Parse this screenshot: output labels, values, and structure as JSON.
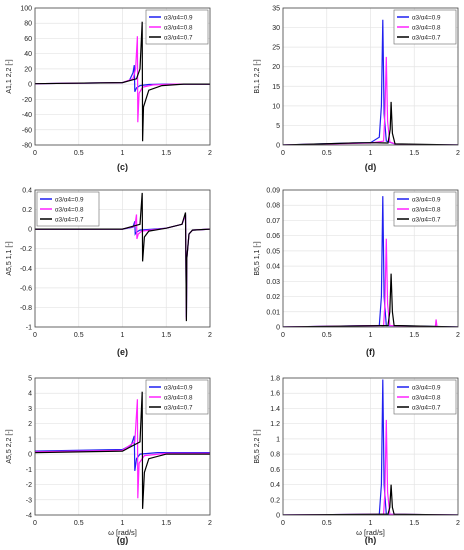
{
  "colors": {
    "blue": "#1f1ff0",
    "magenta": "#ff22ff",
    "black": "#000000",
    "grid": "#e4e4e4",
    "axis": "#444444"
  },
  "legend": [
    "α3/α4=0.9",
    "α3/α4=0.8",
    "α3/α4=0.7"
  ],
  "chart_data": [
    {
      "panel": "c",
      "type": "line",
      "xlabel": "",
      "ylabel": "A1,1 2,2 [-]",
      "xlim": [
        0,
        2
      ],
      "ylim": [
        -80,
        100
      ],
      "xticks": [
        "0",
        "0.5",
        "1",
        "1.5",
        "2"
      ],
      "yticks": [
        "-80",
        "-60",
        "-40",
        "-20",
        "0",
        "20",
        "40",
        "60",
        "80",
        "100"
      ],
      "caption": "(c)",
      "grid": true,
      "legend_position": "top-right",
      "series": [
        {
          "name": "α3/α4=0.9",
          "color": "blue",
          "x": [
            0,
            1.0,
            1.08,
            1.12,
            1.135,
            1.14,
            1.16,
            1.2,
            1.3,
            1.5,
            2.0
          ],
          "y": [
            0.5,
            2,
            5,
            15,
            25,
            -10,
            -5,
            -2,
            -0.5,
            0,
            0
          ]
        },
        {
          "name": "α3/α4=0.8",
          "color": "magenta",
          "x": [
            0,
            1.0,
            1.12,
            1.15,
            1.17,
            1.175,
            1.19,
            1.23,
            1.35,
            1.6,
            2.0
          ],
          "y": [
            0.5,
            2,
            7,
            20,
            63,
            -50,
            -12,
            -4,
            -1,
            0,
            0
          ]
        },
        {
          "name": "α3/α4=0.7",
          "color": "black",
          "x": [
            0,
            1.0,
            1.16,
            1.2,
            1.225,
            1.23,
            1.24,
            1.3,
            1.45,
            1.7,
            2.0
          ],
          "y": [
            0.5,
            2,
            7,
            20,
            82,
            -75,
            -30,
            -8,
            -2,
            0,
            0
          ]
        }
      ]
    },
    {
      "panel": "d",
      "type": "line",
      "xlabel": "",
      "ylabel": "B1,1 2,2 [-]",
      "xlim": [
        0,
        2
      ],
      "ylim": [
        0,
        35
      ],
      "xticks": [
        "0",
        "0.5",
        "1",
        "1.5",
        "2"
      ],
      "yticks": [
        "0",
        "5",
        "10",
        "15",
        "20",
        "25",
        "30",
        "35"
      ],
      "caption": "(d)",
      "grid": true,
      "legend_position": "top-right",
      "series": [
        {
          "name": "α3/α4=0.9",
          "color": "blue",
          "x": [
            0,
            0.8,
            1.0,
            1.1,
            1.125,
            1.14,
            1.155,
            1.18,
            1.3,
            2.0
          ],
          "y": [
            0,
            0.5,
            0.6,
            2,
            10,
            32,
            8,
            1,
            0.1,
            0
          ]
        },
        {
          "name": "α3/α4=0.8",
          "color": "magenta",
          "x": [
            0,
            0.8,
            1.0,
            1.15,
            1.165,
            1.18,
            1.195,
            1.22,
            1.3,
            2.0
          ],
          "y": [
            0,
            0.4,
            0.5,
            1,
            8,
            22.5,
            6,
            0.8,
            0.1,
            0
          ]
        },
        {
          "name": "α3/α4=0.7",
          "color": "black",
          "x": [
            0,
            0.8,
            1.0,
            1.2,
            1.225,
            1.235,
            1.25,
            1.28,
            2.0
          ],
          "y": [
            0,
            0.5,
            0.6,
            0.5,
            4,
            11,
            3,
            0.3,
            0
          ]
        }
      ]
    },
    {
      "panel": "e",
      "type": "line",
      "xlabel": "",
      "ylabel": "A5,5 1,1 [-]",
      "xlim": [
        0,
        2
      ],
      "ylim": [
        -1,
        0.4
      ],
      "xticks": [
        "0",
        "0.5",
        "1",
        "1.5",
        "2"
      ],
      "yticks": [
        "-1",
        "-0.8",
        "-0.6",
        "-0.4",
        "-0.2",
        "0",
        "0.2",
        "0.4"
      ],
      "caption": "(e)",
      "grid": true,
      "legend_position": "top-left",
      "series": [
        {
          "name": "α3/α4=0.9",
          "color": "blue",
          "x": [
            0,
            1.0,
            1.12,
            1.14,
            1.145,
            1.16,
            1.2,
            1.5,
            1.68,
            1.72,
            1.73,
            1.735,
            1.76,
            1.8,
            2.0
          ],
          "y": [
            0,
            0,
            0.02,
            0.08,
            -0.05,
            -0.03,
            -0.01,
            0.01,
            0.05,
            0.15,
            -0.9,
            -0.3,
            -0.05,
            -0.01,
            0
          ]
        },
        {
          "name": "α3/α4=0.8",
          "color": "magenta",
          "x": [
            0,
            1.0,
            1.14,
            1.16,
            1.165,
            1.18,
            1.22,
            1.5,
            1.68,
            1.72,
            1.73,
            1.735,
            1.76,
            1.8,
            2.0
          ],
          "y": [
            0,
            0,
            0.03,
            0.15,
            -0.1,
            -0.05,
            -0.02,
            0.01,
            0.05,
            0.15,
            -0.92,
            -0.3,
            -0.05,
            -0.01,
            0
          ]
        },
        {
          "name": "α3/α4=0.7",
          "color": "black",
          "x": [
            0,
            1.0,
            1.2,
            1.225,
            1.23,
            1.25,
            1.3,
            1.5,
            1.68,
            1.72,
            1.73,
            1.735,
            1.76,
            1.8,
            2.0
          ],
          "y": [
            0,
            0,
            0.05,
            0.37,
            -0.33,
            -0.08,
            -0.02,
            0.01,
            0.05,
            0.17,
            -0.94,
            -0.3,
            -0.05,
            -0.01,
            0
          ]
        }
      ]
    },
    {
      "panel": "f",
      "type": "line",
      "xlabel": "",
      "ylabel": "B5,5 1,1 [-]",
      "xlim": [
        0,
        2
      ],
      "ylim": [
        0,
        0.09
      ],
      "xticks": [
        "0",
        "0.5",
        "1",
        "1.5",
        "2"
      ],
      "yticks": [
        "0",
        "0.01",
        "0.02",
        "0.03",
        "0.04",
        "0.05",
        "0.06",
        "0.07",
        "0.08",
        "0.09"
      ],
      "caption": "(f)",
      "grid": true,
      "legend_position": "top-right",
      "series": [
        {
          "name": "α3/α4=0.9",
          "color": "blue",
          "x": [
            0,
            1.1,
            1.125,
            1.14,
            1.155,
            1.18,
            2.0
          ],
          "y": [
            0,
            0.001,
            0.02,
            0.086,
            0.02,
            0.001,
            0
          ]
        },
        {
          "name": "α3/α4=0.8",
          "color": "magenta",
          "x": [
            0,
            1.15,
            1.165,
            1.18,
            1.195,
            1.22,
            1.74,
            1.75,
            1.76,
            2.0
          ],
          "y": [
            0,
            0.001,
            0.015,
            0.058,
            0.015,
            0.001,
            0,
            0.005,
            0,
            0
          ]
        },
        {
          "name": "α3/α4=0.7",
          "color": "black",
          "x": [
            0,
            1.2,
            1.22,
            1.235,
            1.25,
            1.27,
            2.0
          ],
          "y": [
            0,
            0.001,
            0.01,
            0.035,
            0.01,
            0.001,
            0
          ]
        }
      ]
    },
    {
      "panel": "g",
      "type": "line",
      "xlabel": "ω [rad/s]",
      "ylabel": "A5,5 2,2 [-]",
      "xlim": [
        0,
        2
      ],
      "ylim": [
        -4,
        5
      ],
      "xticks": [
        "0",
        "0.5",
        "1",
        "1.5",
        "2"
      ],
      "yticks": [
        "-4",
        "-3",
        "-2",
        "-1",
        "0",
        "1",
        "2",
        "3",
        "4",
        "5"
      ],
      "caption": "(g)",
      "grid": true,
      "legend_position": "top-right",
      "series": [
        {
          "name": "α3/α4=0.9",
          "color": "blue",
          "x": [
            0,
            1.0,
            1.1,
            1.135,
            1.14,
            1.16,
            1.2,
            1.4,
            2.0
          ],
          "y": [
            0.2,
            0.3,
            0.6,
            1.2,
            -1.1,
            -0.3,
            0,
            0.1,
            0.1
          ]
        },
        {
          "name": "α3/α4=0.8",
          "color": "magenta",
          "x": [
            0,
            1.0,
            1.14,
            1.17,
            1.175,
            1.19,
            1.25,
            1.5,
            2.0
          ],
          "y": [
            0.15,
            0.25,
            0.8,
            3.6,
            -2.9,
            -0.6,
            -0.1,
            0.05,
            0.05
          ]
        },
        {
          "name": "α3/α4=0.7",
          "color": "black",
          "x": [
            0,
            1.0,
            1.2,
            1.225,
            1.23,
            1.25,
            1.3,
            1.5,
            2.0
          ],
          "y": [
            0.1,
            0.2,
            0.8,
            4.1,
            -3.6,
            -1.2,
            -0.3,
            0,
            0
          ]
        }
      ]
    },
    {
      "panel": "h",
      "type": "line",
      "xlabel": "ω [rad/s]",
      "ylabel": "B5,5 2,2 [-]",
      "xlim": [
        0,
        2
      ],
      "ylim": [
        0,
        1.8
      ],
      "xticks": [
        "0",
        "0.5",
        "1",
        "1.5",
        "2"
      ],
      "yticks": [
        "0",
        "0.2",
        "0.4",
        "0.6",
        "0.8",
        "1",
        "1.2",
        "1.4",
        "1.6",
        "1.8"
      ],
      "caption": "(h)",
      "grid": true,
      "legend_position": "top-right",
      "series": [
        {
          "name": "α3/α4=0.9",
          "color": "blue",
          "x": [
            0,
            1.1,
            1.125,
            1.14,
            1.155,
            1.18,
            2.0
          ],
          "y": [
            0,
            0.01,
            0.4,
            1.78,
            0.4,
            0.01,
            0
          ]
        },
        {
          "name": "α3/α4=0.8",
          "color": "magenta",
          "x": [
            0,
            1.15,
            1.165,
            1.18,
            1.195,
            1.22,
            2.0
          ],
          "y": [
            0,
            0.01,
            0.3,
            1.25,
            0.3,
            0.01,
            0
          ]
        },
        {
          "name": "α3/α4=0.7",
          "color": "black",
          "x": [
            0,
            1.2,
            1.22,
            1.235,
            1.25,
            1.27,
            2.0
          ],
          "y": [
            0,
            0.01,
            0.1,
            0.4,
            0.1,
            0.01,
            0
          ]
        }
      ]
    }
  ]
}
